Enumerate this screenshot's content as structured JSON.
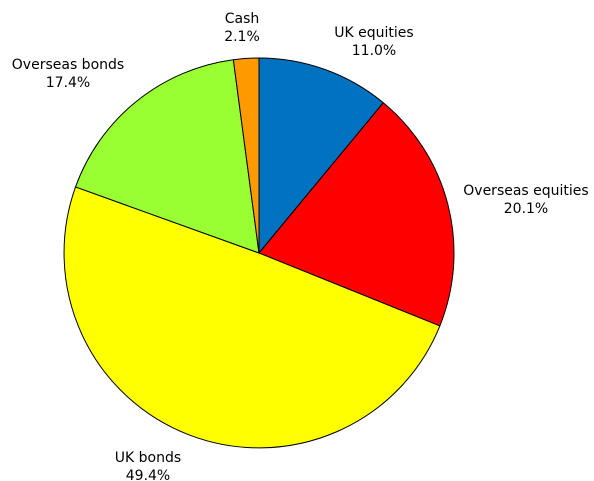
{
  "chart_data": {
    "type": "pie",
    "start": "12 o'clock",
    "direction": "clockwise",
    "slices": [
      {
        "label": "UK equities",
        "value": 11.0,
        "display": "11.0%",
        "color": "#0072c0"
      },
      {
        "label": "Overseas equities",
        "value": 20.1,
        "display": "20.1%",
        "color": "#ff0000"
      },
      {
        "label": "UK bonds",
        "value": 49.4,
        "display": "49.4%",
        "color": "#ffff00"
      },
      {
        "label": "Overseas bonds",
        "value": 17.4,
        "display": "17.4%",
        "color": "#99ff33"
      },
      {
        "label": "Cash",
        "value": 2.1,
        "display": "2.1%",
        "color": "#ff9900"
      }
    ]
  }
}
